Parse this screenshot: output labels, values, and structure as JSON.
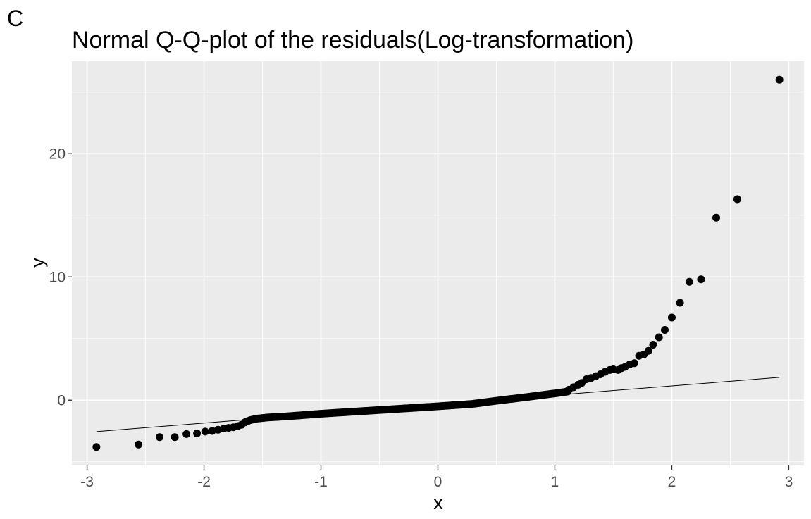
{
  "panel_tag": "C",
  "chart_data": {
    "type": "scatter",
    "title": "Normal Q-Q-plot of the residuals(Log-transformation)",
    "xlabel": "x",
    "ylabel": "y",
    "xlim": [
      -3.13,
      3.13
    ],
    "ylim": [
      -5.3,
      27.5
    ],
    "x_ticks": [
      -3,
      -2,
      -1,
      0,
      1,
      2,
      3
    ],
    "x_tick_labels": [
      "-3",
      "-2",
      "-1",
      "0",
      "1",
      "2",
      "3"
    ],
    "y_ticks": [
      0,
      10,
      20
    ],
    "y_tick_labels": [
      "0",
      "10",
      "20"
    ],
    "grid": true,
    "panel_background": "#ebebeb",
    "grid_color": "#ffffff",
    "point_color": "#000000",
    "reference_line": {
      "x": [
        -2.92,
        2.92
      ],
      "y": [
        -2.55,
        1.85
      ],
      "color": "#000000"
    },
    "outer_points": [
      [
        -2.92,
        -3.8
      ],
      [
        -2.56,
        -3.6
      ],
      [
        -2.38,
        -3.0
      ],
      [
        -2.25,
        -3.0
      ],
      [
        -2.15,
        -2.75
      ],
      [
        -2.06,
        -2.7
      ],
      [
        -1.99,
        -2.55
      ],
      [
        -1.93,
        -2.5
      ],
      [
        -1.88,
        -2.4
      ],
      [
        -1.83,
        -2.3
      ],
      [
        -1.79,
        -2.25
      ],
      [
        -1.75,
        -2.2
      ],
      [
        -1.71,
        -2.1
      ],
      [
        -1.68,
        -2.0
      ],
      [
        -1.65,
        -1.8
      ],
      [
        1.12,
        0.85
      ],
      [
        1.16,
        1.05
      ],
      [
        1.2,
        1.25
      ],
      [
        1.23,
        1.4
      ],
      [
        1.27,
        1.7
      ],
      [
        1.31,
        1.8
      ],
      [
        1.35,
        1.95
      ],
      [
        1.39,
        2.1
      ],
      [
        1.43,
        2.3
      ],
      [
        1.47,
        2.45
      ],
      [
        1.5,
        2.5
      ],
      [
        1.54,
        2.45
      ],
      [
        1.57,
        2.6
      ],
      [
        1.6,
        2.7
      ],
      [
        1.64,
        2.9
      ],
      [
        1.68,
        3.0
      ],
      [
        1.72,
        3.6
      ],
      [
        1.76,
        3.7
      ],
      [
        1.8,
        4.0
      ],
      [
        1.84,
        4.5
      ],
      [
        1.89,
        5.1
      ],
      [
        1.94,
        5.7
      ],
      [
        2.0,
        6.7
      ],
      [
        2.07,
        7.9
      ],
      [
        2.15,
        9.6
      ],
      [
        2.25,
        9.8
      ],
      [
        2.38,
        14.8
      ],
      [
        2.56,
        16.3
      ],
      [
        2.92,
        26.0
      ]
    ],
    "bulk_points": {
      "x_range": [
        -1.64,
        1.11
      ],
      "count": 160,
      "shape_points": [
        [
          -1.64,
          -1.75
        ],
        [
          -1.6,
          -1.6
        ],
        [
          -1.55,
          -1.5
        ],
        [
          -1.45,
          -1.4
        ],
        [
          -1.3,
          -1.32
        ],
        [
          -1.0,
          -1.1
        ],
        [
          -0.5,
          -0.8
        ],
        [
          0.0,
          -0.5
        ],
        [
          0.3,
          -0.3
        ],
        [
          0.5,
          -0.05
        ],
        [
          0.8,
          0.3
        ],
        [
          1.0,
          0.55
        ],
        [
          1.11,
          0.7
        ]
      ]
    }
  }
}
